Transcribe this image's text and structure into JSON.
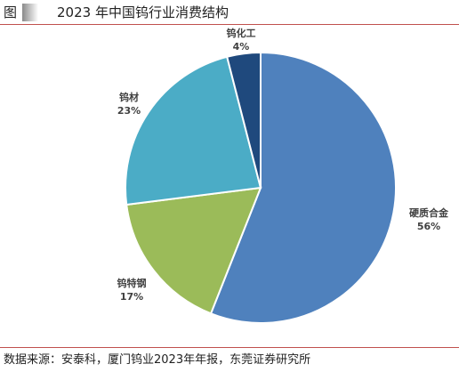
{
  "figure": {
    "label": "图",
    "title": "2023 年中国钨行业消费结构"
  },
  "source_note": "数据来源：安泰科，厦门钨业2023年年报，东莞证券研究所",
  "chart_data": {
    "type": "pie",
    "title": "",
    "start": "12 o'clock",
    "direction": "clockwise",
    "legend": "none",
    "slices": [
      {
        "name": "硬质合金",
        "value": 56,
        "label": "56%",
        "color": "#4f81bd"
      },
      {
        "name": "钨特钢",
        "value": 17,
        "label": "17%",
        "color": "#9bbb59"
      },
      {
        "name": "钨材",
        "value": 23,
        "label": "23%",
        "color": "#4bacc6"
      },
      {
        "name": "钨化工",
        "value": 4,
        "label": "4%",
        "color": "#1f497d"
      }
    ]
  }
}
